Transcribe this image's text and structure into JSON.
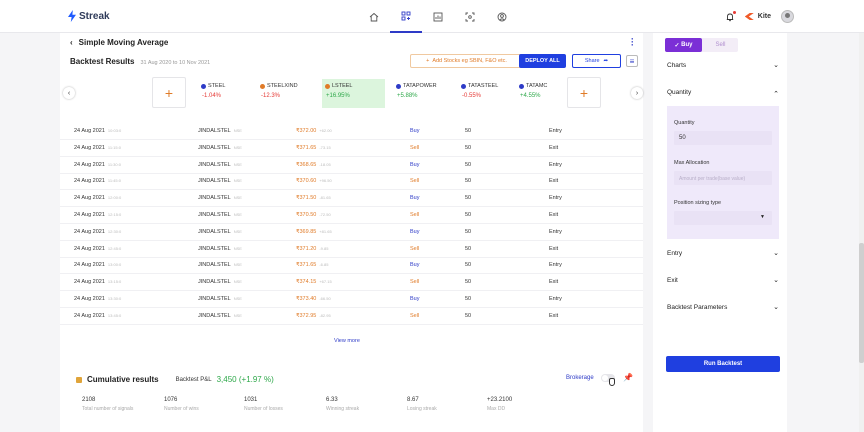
{
  "app": {
    "name": "Streak"
  },
  "topbar": {
    "broker": "Kite"
  },
  "strategy": {
    "title": "Simple Moving Average"
  },
  "backtest": {
    "title": "Backtest Results",
    "date_range": "31 Aug 2020 to 10 Nov 2021",
    "add_stocks": "Add Stocks eg SBIN, F&O etc.",
    "deploy": "DEPLOY ALL",
    "share": "Share"
  },
  "stocks": [
    {
      "name": "STEEL",
      "pct": "-1.04%",
      "trend": "neg",
      "color": "#2e3bc7"
    },
    {
      "name": "STEELXIND",
      "pct": "-12.3%",
      "trend": "neg",
      "color": "#e07b28"
    },
    {
      "name": "LSTEEL",
      "pct": "+16.95%",
      "trend": "pos",
      "color": "#e07b28"
    },
    {
      "name": "TATAPOWER",
      "pct": "+5.88%",
      "trend": "pos",
      "color": "#2e3bc7"
    },
    {
      "name": "TATASTEEL",
      "pct": "-0.55%",
      "trend": "neg",
      "color": "#2e3bc7"
    },
    {
      "name": "TATAMC",
      "pct": "+4.55%",
      "trend": "pos",
      "color": "#2e3bc7"
    }
  ],
  "trades": [
    {
      "date": "24 Aug 2021",
      "time": "10:03:0",
      "symbol": "JINDALSTEL",
      "exch": "NSE",
      "price": "₹372.00",
      "sub": "+62.00",
      "side": "Buy",
      "qty": "50",
      "type": "Entry"
    },
    {
      "date": "24 Aug 2021",
      "time": "11:15:0",
      "symbol": "JINDALSTEL",
      "exch": "NSE",
      "price": "₹371.65",
      "sub": "-73.15",
      "side": "Sell",
      "qty": "50",
      "type": "Exit"
    },
    {
      "date": "24 Aug 2021",
      "time": "11:30:0",
      "symbol": "JINDALSTEL",
      "exch": "NSE",
      "price": "₹368.65",
      "sub": "-18.05",
      "side": "Buy",
      "qty": "50",
      "type": "Entry"
    },
    {
      "date": "24 Aug 2021",
      "time": "11:45:0",
      "symbol": "JINDALSTEL",
      "exch": "NSE",
      "price": "₹370.60",
      "sub": "+96.50",
      "side": "Sell",
      "qty": "50",
      "type": "Exit"
    },
    {
      "date": "24 Aug 2021",
      "time": "12:00:0",
      "symbol": "JINDALSTEL",
      "exch": "NSE",
      "price": "₹371.50",
      "sub": "-81.65",
      "side": "Buy",
      "qty": "50",
      "type": "Entry"
    },
    {
      "date": "24 Aug 2021",
      "time": "12:15:0",
      "symbol": "JINDALSTEL",
      "exch": "NSE",
      "price": "₹370.50",
      "sub": "-72.50",
      "side": "Sell",
      "qty": "50",
      "type": "Exit"
    },
    {
      "date": "24 Aug 2021",
      "time": "12:30:0",
      "symbol": "JINDALSTEL",
      "exch": "NSE",
      "price": "₹369.85",
      "sub": "+81.65",
      "side": "Buy",
      "qty": "50",
      "type": "Entry"
    },
    {
      "date": "24 Aug 2021",
      "time": "12:45:0",
      "symbol": "JINDALSTEL",
      "exch": "NSE",
      "price": "₹371.20",
      "sub": "-9.85",
      "side": "Sell",
      "qty": "50",
      "type": "Exit"
    },
    {
      "date": "24 Aug 2021",
      "time": "13:00:0",
      "symbol": "JINDALSTEL",
      "exch": "NSE",
      "price": "₹371.65",
      "sub": "-6.85",
      "side": "Buy",
      "qty": "50",
      "type": "Entry"
    },
    {
      "date": "24 Aug 2021",
      "time": "13:15:0",
      "symbol": "JINDALSTEL",
      "exch": "NSE",
      "price": "₹374.15",
      "sub": "+67.15",
      "side": "Sell",
      "qty": "50",
      "type": "Exit"
    },
    {
      "date": "24 Aug 2021",
      "time": "13:30:0",
      "symbol": "JINDALSTEL",
      "exch": "NSE",
      "price": "₹373.40",
      "sub": "-66.50",
      "side": "Buy",
      "qty": "50",
      "type": "Entry"
    },
    {
      "date": "24 Aug 2021",
      "time": "13:45:0",
      "symbol": "JINDALSTEL",
      "exch": "NSE",
      "price": "₹372.95",
      "sub": "-82.95",
      "side": "Sell",
      "qty": "50",
      "type": "Exit"
    }
  ],
  "view_more": "View more",
  "cumulative": {
    "title": "Cumulative results",
    "pl_label": "Backtest P&L",
    "pl_value": "3,450 (+1.97 %)",
    "brokerage": "Brokerage"
  },
  "stats": [
    {
      "value": "2108",
      "label": "Total number of signals"
    },
    {
      "value": "1076",
      "label": "Number of wins"
    },
    {
      "value": "1031",
      "label": "Number of losses"
    },
    {
      "value": "6.33",
      "label": "Winning streak"
    },
    {
      "value": "8.67",
      "label": "Losing streak"
    },
    {
      "value": "+23.2100",
      "label": "Max DD"
    }
  ],
  "right": {
    "buy": "Buy",
    "sell": "Sell",
    "charts": "Charts",
    "quantity": "Quantity",
    "qty_label": "Quantity",
    "qty_value": "50",
    "max_alloc_label": "Max Allocation",
    "max_alloc_placeholder": "Amount per trade(base value)",
    "pos_sizing_label": "Position sizing type",
    "entry": "Entry",
    "exit": "Exit",
    "params": "Backtest Parameters",
    "run": "Run Backtest"
  }
}
